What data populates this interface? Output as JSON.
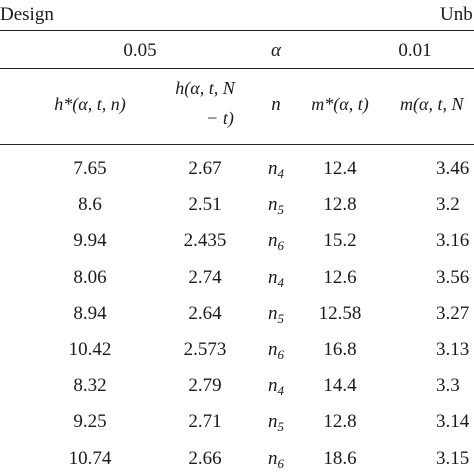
{
  "header": {
    "left": "Design",
    "right": "Unb",
    "alpha_left": "0.05",
    "alpha_symbol": "α",
    "alpha_right": "0.01",
    "col1": "h*(α, t, n)",
    "col2_line1": "h(α, t, N",
    "col2_line2": "− t)",
    "col3": "n",
    "col4": "m*(α, t)",
    "col5": "m(α, t, N"
  },
  "rows": [
    {
      "h_star": "7.65",
      "h": "2.67",
      "n_base": "n",
      "n_sub": "4",
      "m_star": "12.4",
      "m": "3.46"
    },
    {
      "h_star": "8.6",
      "h": "2.51",
      "n_base": "n",
      "n_sub": "5",
      "m_star": "12.8",
      "m": "3.2"
    },
    {
      "h_star": "9.94",
      "h": "2.435",
      "n_base": "n",
      "n_sub": "6",
      "m_star": "15.2",
      "m": "3.16"
    },
    {
      "h_star": "8.06",
      "h": "2.74",
      "n_base": "n",
      "n_sub": "4",
      "m_star": "12.6",
      "m": "3.56"
    },
    {
      "h_star": "8.94",
      "h": "2.64",
      "n_base": "n",
      "n_sub": "5",
      "m_star": "12.58",
      "m": "3.27"
    },
    {
      "h_star": "10.42",
      "h": "2.573",
      "n_base": "n",
      "n_sub": "6",
      "m_star": "16.8",
      "m": "3.13"
    },
    {
      "h_star": "8.32",
      "h": "2.79",
      "n_base": "n",
      "n_sub": "4",
      "m_star": "14.4",
      "m": "3.3"
    },
    {
      "h_star": "9.25",
      "h": "2.71",
      "n_base": "n",
      "n_sub": "5",
      "m_star": "12.8",
      "m": "3.14"
    },
    {
      "h_star": "10.74",
      "h": "2.66",
      "n_base": "n",
      "n_sub": "6",
      "m_star": "18.6",
      "m": "3.15"
    }
  ]
}
